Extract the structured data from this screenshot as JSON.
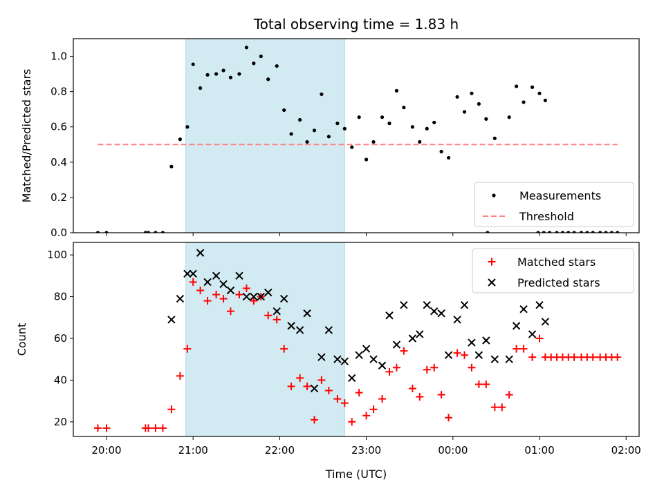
{
  "title": "Total observing time = 1.83 h",
  "xlabel": "Time (UTC)",
  "x_tick_labels": [
    "20:00",
    "21:00",
    "22:00",
    "23:00",
    "00:00",
    "01:00",
    "02:00"
  ],
  "x_tick_values": [
    0,
    60,
    120,
    180,
    240,
    300,
    360
  ],
  "x_range": [
    -23,
    369
  ],
  "highlight_span": {
    "start": 55,
    "end": 165,
    "color": "#add8e6"
  },
  "chart_data": [
    {
      "type": "scatter",
      "ylabel": "Matched/Predicted stars",
      "ylim": [
        0,
        1.1
      ],
      "yticks": [
        0.0,
        0.2,
        0.4,
        0.6,
        0.8,
        1.0
      ],
      "ytick_labels": [
        "0.0",
        "0.2",
        "0.4",
        "0.6",
        "0.8",
        "1.0"
      ],
      "legend_position": "lower-right",
      "series": [
        {
          "name": "Measurements",
          "marker": "dot",
          "color": "#000000",
          "points": [
            [
              -6,
              0
            ],
            [
              0,
              0
            ],
            [
              27,
              0
            ],
            [
              29,
              0
            ],
            [
              34,
              0
            ],
            [
              39,
              0
            ],
            [
              45,
              0.375
            ],
            [
              51,
              0.53
            ],
            [
              56,
              0.6
            ],
            [
              60,
              0.955
            ],
            [
              65,
              0.82
            ],
            [
              70,
              0.895
            ],
            [
              76,
              0.9
            ],
            [
              81,
              0.92
            ],
            [
              86,
              0.88
            ],
            [
              92,
              0.9
            ],
            [
              97,
              1.05
            ],
            [
              102,
              0.96
            ],
            [
              107,
              1.0
            ],
            [
              112,
              0.87
            ],
            [
              118,
              0.945
            ],
            [
              123,
              0.695
            ],
            [
              128,
              0.56
            ],
            [
              134,
              0.64
            ],
            [
              139,
              0.515
            ],
            [
              144,
              0.58
            ],
            [
              149,
              0.785
            ],
            [
              154,
              0.545
            ],
            [
              160,
              0.62
            ],
            [
              165,
              0.59
            ],
            [
              170,
              0.485
            ],
            [
              175,
              0.655
            ],
            [
              180,
              0.415
            ],
            [
              185,
              0.515
            ],
            [
              191,
              0.655
            ],
            [
              196,
              0.62
            ],
            [
              201,
              0.805
            ],
            [
              206,
              0.71
            ],
            [
              212,
              0.6
            ],
            [
              217,
              0.515
            ],
            [
              222,
              0.59
            ],
            [
              227,
              0.625
            ],
            [
              232,
              0.46
            ],
            [
              237,
              0.425
            ],
            [
              243,
              0.77
            ],
            [
              248,
              0.685
            ],
            [
              253,
              0.79
            ],
            [
              258,
              0.73
            ],
            [
              263,
              0.645
            ],
            [
              269,
              0.535
            ],
            [
              279,
              0.655
            ],
            [
              284,
              0.83
            ],
            [
              289,
              0.74
            ],
            [
              295,
              0.825
            ],
            [
              300,
              0.79
            ],
            [
              304,
              0.75
            ],
            [
              264,
              0
            ],
            [
              299,
              0
            ],
            [
              303,
              0
            ],
            [
              307,
              0
            ],
            [
              312,
              0
            ],
            [
              316,
              0
            ],
            [
              320,
              0
            ],
            [
              324,
              0
            ],
            [
              329,
              0
            ],
            [
              333,
              0
            ],
            [
              337,
              0
            ],
            [
              342,
              0
            ],
            [
              346,
              0
            ],
            [
              350,
              0
            ],
            [
              354,
              0
            ]
          ]
        }
      ],
      "threshold": {
        "name": "Threshold",
        "value": 0.5,
        "x_start": -6,
        "x_end": 354,
        "color": "#ff8080"
      }
    },
    {
      "type": "scatter",
      "ylabel": "Count",
      "ylim": [
        13,
        106
      ],
      "yticks": [
        20,
        40,
        60,
        80,
        100
      ],
      "ytick_labels": [
        "20",
        "40",
        "60",
        "80",
        "100"
      ],
      "legend_position": "upper-right",
      "series": [
        {
          "name": "Matched stars",
          "marker": "plus",
          "color": "#ff0000",
          "points": [
            [
              -6,
              17
            ],
            [
              0,
              17
            ],
            [
              27,
              17
            ],
            [
              29,
              17
            ],
            [
              34,
              17
            ],
            [
              39,
              17
            ],
            [
              45,
              26
            ],
            [
              51,
              42
            ],
            [
              56,
              55
            ],
            [
              60,
              87
            ],
            [
              65,
              83
            ],
            [
              70,
              78
            ],
            [
              76,
              81
            ],
            [
              81,
              79
            ],
            [
              86,
              73
            ],
            [
              92,
              81
            ],
            [
              97,
              84
            ],
            [
              102,
              78
            ],
            [
              107,
              80
            ],
            [
              112,
              71
            ],
            [
              118,
              69
            ],
            [
              123,
              55
            ],
            [
              128,
              37
            ],
            [
              134,
              41
            ],
            [
              139,
              37
            ],
            [
              144,
              21
            ],
            [
              149,
              40
            ],
            [
              154,
              35
            ],
            [
              160,
              31
            ],
            [
              165,
              29
            ],
            [
              170,
              20
            ],
            [
              175,
              34
            ],
            [
              180,
              23
            ],
            [
              185,
              26
            ],
            [
              191,
              31
            ],
            [
              196,
              44
            ],
            [
              201,
              46
            ],
            [
              206,
              54
            ],
            [
              212,
              36
            ],
            [
              217,
              32
            ],
            [
              222,
              45
            ],
            [
              227,
              46
            ],
            [
              232,
              33
            ],
            [
              237,
              22
            ],
            [
              243,
              53
            ],
            [
              248,
              52
            ],
            [
              253,
              46
            ],
            [
              258,
              38
            ],
            [
              263,
              38
            ],
            [
              269,
              27
            ],
            [
              274,
              27
            ],
            [
              279,
              33
            ],
            [
              284,
              55
            ],
            [
              289,
              55
            ],
            [
              295,
              51
            ],
            [
              300,
              60
            ],
            [
              304,
              51
            ],
            [
              308,
              51
            ],
            [
              312,
              51
            ],
            [
              316,
              51
            ],
            [
              320,
              51
            ],
            [
              324,
              51
            ],
            [
              329,
              51
            ],
            [
              333,
              51
            ],
            [
              337,
              51
            ],
            [
              342,
              51
            ],
            [
              346,
              51
            ],
            [
              350,
              51
            ],
            [
              354,
              51
            ]
          ]
        },
        {
          "name": "Predicted stars",
          "marker": "x",
          "color": "#000000",
          "points": [
            [
              45,
              69
            ],
            [
              51,
              79
            ],
            [
              56,
              91
            ],
            [
              60,
              91
            ],
            [
              65,
              101
            ],
            [
              70,
              87
            ],
            [
              76,
              90
            ],
            [
              81,
              86
            ],
            [
              86,
              83
            ],
            [
              92,
              90
            ],
            [
              97,
              80
            ],
            [
              102,
              80
            ],
            [
              107,
              80
            ],
            [
              112,
              82
            ],
            [
              118,
              73
            ],
            [
              123,
              79
            ],
            [
              128,
              66
            ],
            [
              134,
              64
            ],
            [
              139,
              72
            ],
            [
              144,
              36
            ],
            [
              149,
              51
            ],
            [
              154,
              64
            ],
            [
              160,
              50
            ],
            [
              165,
              49
            ],
            [
              170,
              41
            ],
            [
              175,
              52
            ],
            [
              180,
              55
            ],
            [
              185,
              50
            ],
            [
              191,
              47
            ],
            [
              196,
              71
            ],
            [
              201,
              57
            ],
            [
              206,
              76
            ],
            [
              212,
              60
            ],
            [
              217,
              62
            ],
            [
              222,
              76
            ],
            [
              227,
              73
            ],
            [
              232,
              72
            ],
            [
              237,
              52
            ],
            [
              243,
              69
            ],
            [
              248,
              76
            ],
            [
              253,
              58
            ],
            [
              258,
              52
            ],
            [
              263,
              59
            ],
            [
              269,
              50
            ],
            [
              279,
              50
            ],
            [
              284,
              66
            ],
            [
              289,
              74
            ],
            [
              295,
              62
            ],
            [
              300,
              76
            ],
            [
              304,
              68
            ]
          ]
        }
      ]
    }
  ]
}
